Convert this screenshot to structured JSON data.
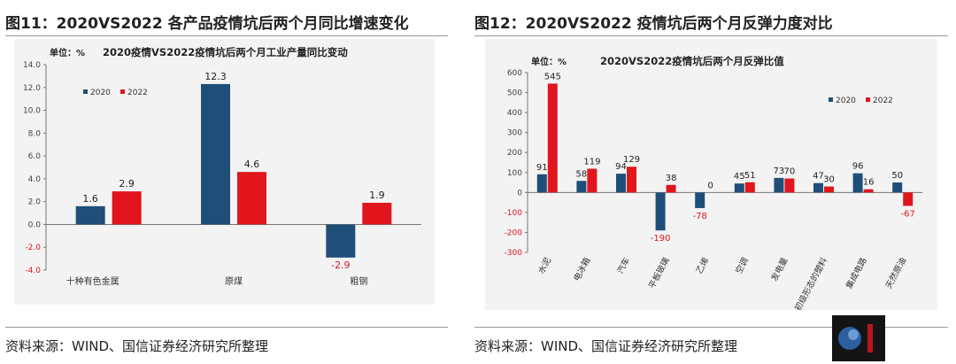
{
  "left": {
    "figure_title": "图11：2020VS2022 各产品疫情坑后两个月同比增速变化",
    "source": "资料来源：WIND、国信证券经济研究所整理"
  },
  "right": {
    "figure_title": "图12：2020VS2022 疫情坑后两个月反弹力度对比",
    "source": "资料来源：WIND、国信证券经济研究所整理"
  },
  "colors": {
    "s2020": "#1f4e79",
    "s2022": "#e0161c",
    "panel": "#f3f3f3"
  },
  "chart_data": [
    {
      "type": "bar",
      "title": "2020疫情VS2022疫情坑后两个月工业产量同比变动",
      "unit_label": "单位：%",
      "categories": [
        "十种有色金属",
        "原煤",
        "粗钢"
      ],
      "series": [
        {
          "name": "2020",
          "values": [
            1.6,
            12.3,
            -2.9
          ]
        },
        {
          "name": "2022",
          "values": [
            2.9,
            4.6,
            1.9
          ]
        }
      ],
      "data_labels": [
        [
          "1.6",
          "12.3",
          "-2.9"
        ],
        [
          "2.9",
          "4.6",
          "1.9"
        ]
      ],
      "ylim": [
        -4.0,
        14.0
      ],
      "yticks": [
        "-4.0",
        "-2.0",
        "0.0",
        "2.0",
        "4.0",
        "6.0",
        "8.0",
        "10.0",
        "12.0",
        "14.0"
      ],
      "legend_position": "top-left"
    },
    {
      "type": "bar",
      "title": "2020VS2022疫情坑后两个月反弹比值",
      "unit_label": "单位：%",
      "categories": [
        "水泥",
        "电冰箱",
        "汽车",
        "平板玻璃",
        "乙烯",
        "空调",
        "发电量",
        "初级形态的塑料",
        "集成电路",
        "天然原油"
      ],
      "series": [
        {
          "name": "2020",
          "values": [
            91,
            58,
            94,
            -190,
            -78,
            45,
            73,
            47,
            96,
            50
          ]
        },
        {
          "name": "2022",
          "values": [
            545,
            119,
            129,
            38,
            0,
            51,
            70,
            30,
            16,
            -67
          ]
        }
      ],
      "data_labels": [
        [
          "91",
          "58",
          "94",
          "-190",
          "-78",
          "45",
          "73",
          "47",
          "96",
          "50"
        ],
        [
          "545",
          "119",
          "129",
          "38",
          "0",
          "51",
          "70",
          "30",
          "16",
          "-67"
        ]
      ],
      "ylim": [
        -300,
        600
      ],
      "yticks": [
        "-300",
        "-200",
        "-100",
        "0",
        "100",
        "200",
        "300",
        "400",
        "500",
        "600"
      ],
      "legend_position": "top-right"
    }
  ]
}
